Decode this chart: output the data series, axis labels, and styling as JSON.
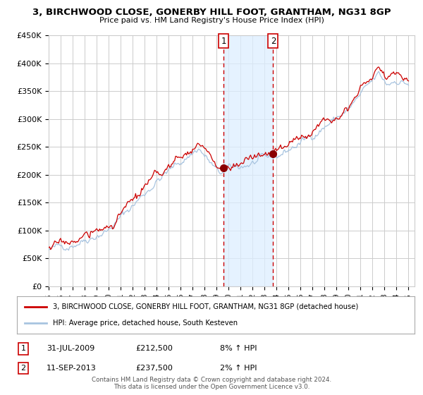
{
  "title": "3, BIRCHWOOD CLOSE, GONERBY HILL FOOT, GRANTHAM, NG31 8GP",
  "subtitle": "Price paid vs. HM Land Registry's House Price Index (HPI)",
  "ylabel_ticks": [
    "£0",
    "£50K",
    "£100K",
    "£150K",
    "£200K",
    "£250K",
    "£300K",
    "£350K",
    "£400K",
    "£450K"
  ],
  "ytick_vals": [
    0,
    50000,
    100000,
    150000,
    200000,
    250000,
    300000,
    350000,
    400000,
    450000
  ],
  "start_year": 1995,
  "end_year": 2025,
  "sale1_date": 2009.58,
  "sale1_price": 212500,
  "sale1_label": "1",
  "sale1_display": "31-JUL-2009",
  "sale1_amount": "£212,500",
  "sale1_hpi": "8% ↑ HPI",
  "sale2_date": 2013.71,
  "sale2_price": 237500,
  "sale2_label": "2",
  "sale2_display": "11-SEP-2013",
  "sale2_amount": "£237,500",
  "sale2_hpi": "2% ↑ HPI",
  "hpi_line_color": "#a8c4e0",
  "price_line_color": "#cc0000",
  "dot_color": "#8b0000",
  "vline_color": "#cc0000",
  "shade_color": "#ddeeff",
  "grid_color": "#cccccc",
  "background_color": "#ffffff",
  "legend_line1": "3, BIRCHWOOD CLOSE, GONERBY HILL FOOT, GRANTHAM, NG31 8GP (detached house)",
  "legend_line2": "HPI: Average price, detached house, South Kesteven",
  "footer": "Contains HM Land Registry data © Crown copyright and database right 2024.\nThis data is licensed under the Open Government Licence v3.0."
}
